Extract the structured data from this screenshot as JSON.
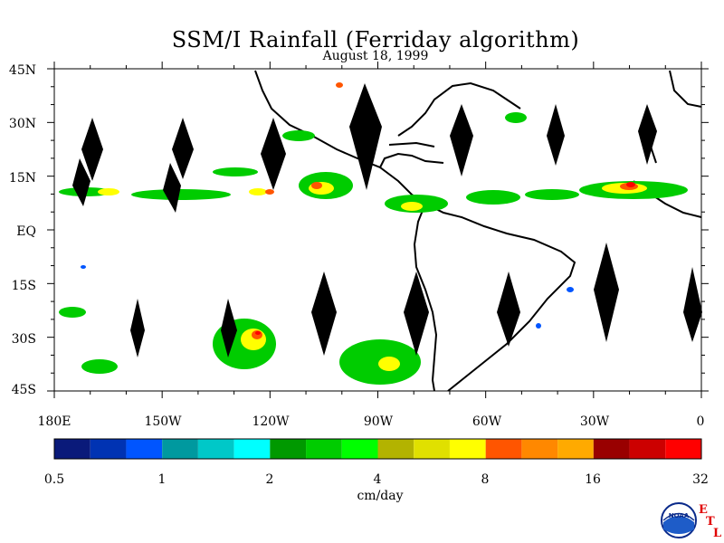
{
  "title": "SSM/I Rainfall (Ferriday algorithm)",
  "subtitle": "August 18, 1999",
  "lat_labels": [
    "45N",
    "30N",
    "15N",
    "EQ",
    "15S",
    "30S",
    "45S"
  ],
  "lon_labels": [
    "180E",
    "150W",
    "120W",
    "90W",
    "60W",
    "30W",
    "0"
  ],
  "colorbar": {
    "unit": "cm/day",
    "tick_labels": [
      "0.5",
      "1",
      "2",
      "4",
      "8",
      "16",
      "32"
    ],
    "colors": [
      "#0a1a7a",
      "#0033b3",
      "#0055ff",
      "#00999f",
      "#00c8c8",
      "#00ffff",
      "#009900",
      "#00cc00",
      "#00ff00",
      "#b3b300",
      "#e0e000",
      "#ffff00",
      "#ff5500",
      "#ff8800",
      "#ffaa00",
      "#990000",
      "#cc0000",
      "#ff0000"
    ]
  },
  "logo": {
    "agency": "NOAA",
    "letters": [
      "E",
      "T",
      "L"
    ]
  }
}
